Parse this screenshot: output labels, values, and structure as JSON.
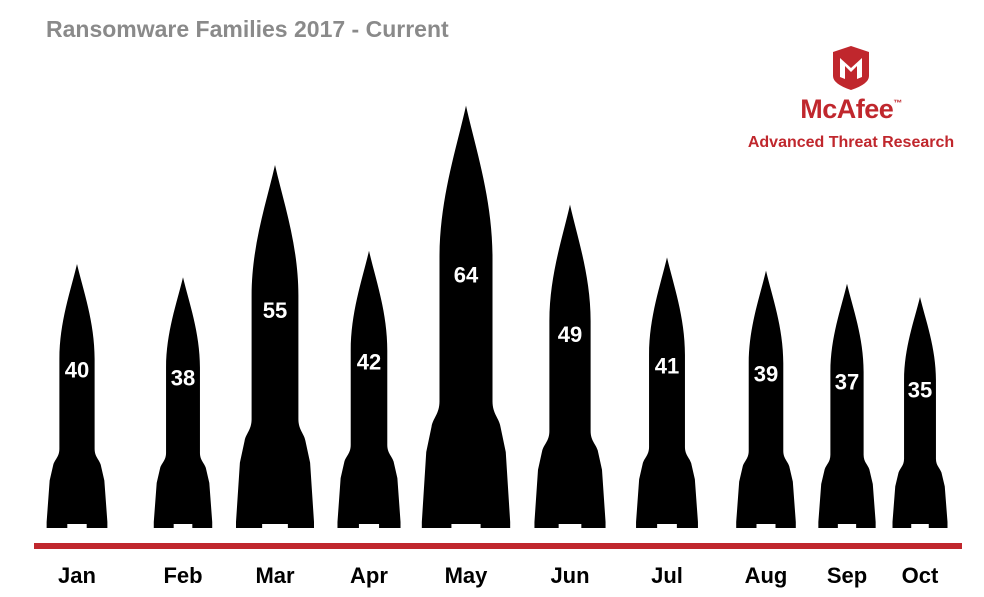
{
  "colors": {
    "title": "#8a8a8a",
    "rocket": "#000000",
    "label_on_rocket": "#ffffff",
    "baseline": "#c0272d",
    "brand": "#c0272d",
    "axis_label": "#000000"
  },
  "logo": {
    "icon": "mcafee-shield-icon",
    "brand": "McAfee",
    "trademark": "™",
    "tagline": "Advanced Threat Research"
  },
  "chart_data": {
    "type": "bar",
    "title": "Ransomware Families 2017 - Current",
    "categories": [
      "Jan",
      "Feb",
      "Mar",
      "Apr",
      "May",
      "Jun",
      "Jul",
      "Aug",
      "Sep",
      "Oct"
    ],
    "values": [
      40,
      38,
      55,
      42,
      64,
      49,
      41,
      39,
      37,
      35
    ],
    "xlabel": "",
    "ylabel": "",
    "grid": false,
    "legend": "none",
    "mark_shape": "rocket-icon"
  }
}
